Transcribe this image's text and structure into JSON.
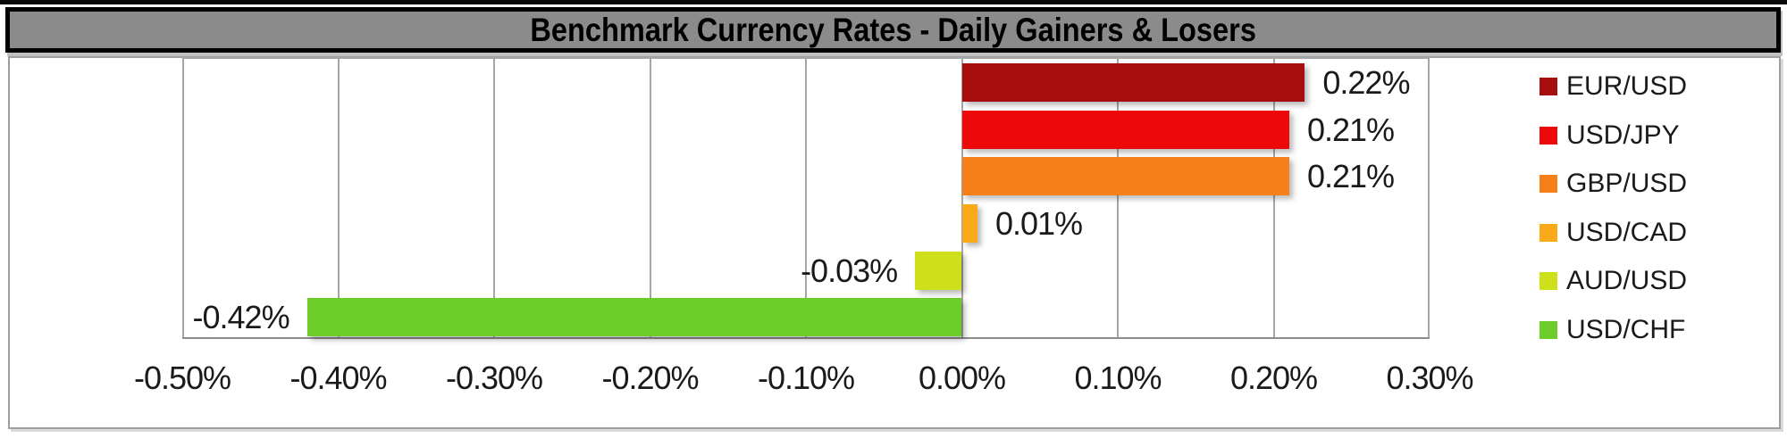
{
  "window": {
    "title": "Benchmark Currency Rates - Daily Gainers & Losers"
  },
  "palette": {
    "title_bar_bg": "#8B8B8B",
    "title_bar_border": "#000000",
    "frame_border": "#9E9E9E",
    "gridline": "#A6A6A6",
    "axis_line": "#8C8C8C",
    "label_text": "#1A1A1A"
  },
  "chart_data": {
    "type": "bar",
    "orientation": "horizontal",
    "title": "Benchmark Currency Rates - Daily Gainers & Losers",
    "categories": [
      "EUR/USD",
      "USD/JPY",
      "GBP/USD",
      "USD/CAD",
      "AUD/USD",
      "USD/CHF"
    ],
    "values": [
      0.22,
      0.21,
      0.21,
      0.01,
      -0.03,
      -0.42
    ],
    "value_labels": [
      "0.22%",
      "0.21%",
      "0.21%",
      "0.01%",
      "-0.03%",
      "-0.42%"
    ],
    "colors": [
      "#A60D0D",
      "#ED0909",
      "#F58018",
      "#FAAA19",
      "#CDE01A",
      "#6CCC29"
    ],
    "xlabel": "",
    "ylabel": "",
    "xlim": [
      -0.5,
      0.3
    ],
    "x_ticks": [
      -0.5,
      -0.4,
      -0.3,
      -0.2,
      -0.1,
      0.0,
      0.1,
      0.2,
      0.3
    ],
    "x_tick_labels": [
      "-0.50%",
      "-0.40%",
      "-0.30%",
      "-0.20%",
      "-0.10%",
      "0.00%",
      "0.10%",
      "0.20%",
      "0.30%"
    ],
    "grid": true,
    "legend_position": "right",
    "legend": [
      "EUR/USD",
      "USD/JPY",
      "GBP/USD",
      "USD/CAD",
      "AUD/USD",
      "USD/CHF"
    ]
  }
}
